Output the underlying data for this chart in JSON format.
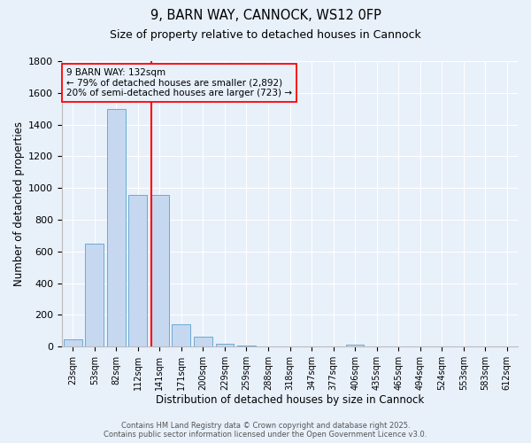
{
  "title1": "9, BARN WAY, CANNOCK, WS12 0FP",
  "title2": "Size of property relative to detached houses in Cannock",
  "xlabel": "Distribution of detached houses by size in Cannock",
  "ylabel": "Number of detached properties",
  "categories": [
    "23sqm",
    "53sqm",
    "82sqm",
    "112sqm",
    "141sqm",
    "171sqm",
    "200sqm",
    "229sqm",
    "259sqm",
    "288sqm",
    "318sqm",
    "347sqm",
    "377sqm",
    "406sqm",
    "435sqm",
    "465sqm",
    "494sqm",
    "524sqm",
    "553sqm",
    "583sqm",
    "612sqm"
  ],
  "values": [
    45,
    650,
    1500,
    955,
    955,
    140,
    65,
    20,
    8,
    3,
    2,
    1,
    1,
    10,
    0,
    0,
    0,
    0,
    0,
    0,
    0
  ],
  "bar_color": "#c5d8f0",
  "bar_edge_color": "#6aaad4",
  "bg_color": "#e8f0fa",
  "grid_color": "#ffffff",
  "red_line_x": 3.6,
  "annotation_title": "9 BARN WAY: 132sqm",
  "annotation_line1": "← 79% of detached houses are smaller (2,892)",
  "annotation_line2": "20% of semi-detached houses are larger (723) →",
  "footer1": "Contains HM Land Registry data © Crown copyright and database right 2025.",
  "footer2": "Contains public sector information licensed under the Open Government Licence v3.0.",
  "ylim": [
    0,
    1800
  ],
  "yticks": [
    0,
    200,
    400,
    600,
    800,
    1000,
    1200,
    1400,
    1600,
    1800
  ]
}
